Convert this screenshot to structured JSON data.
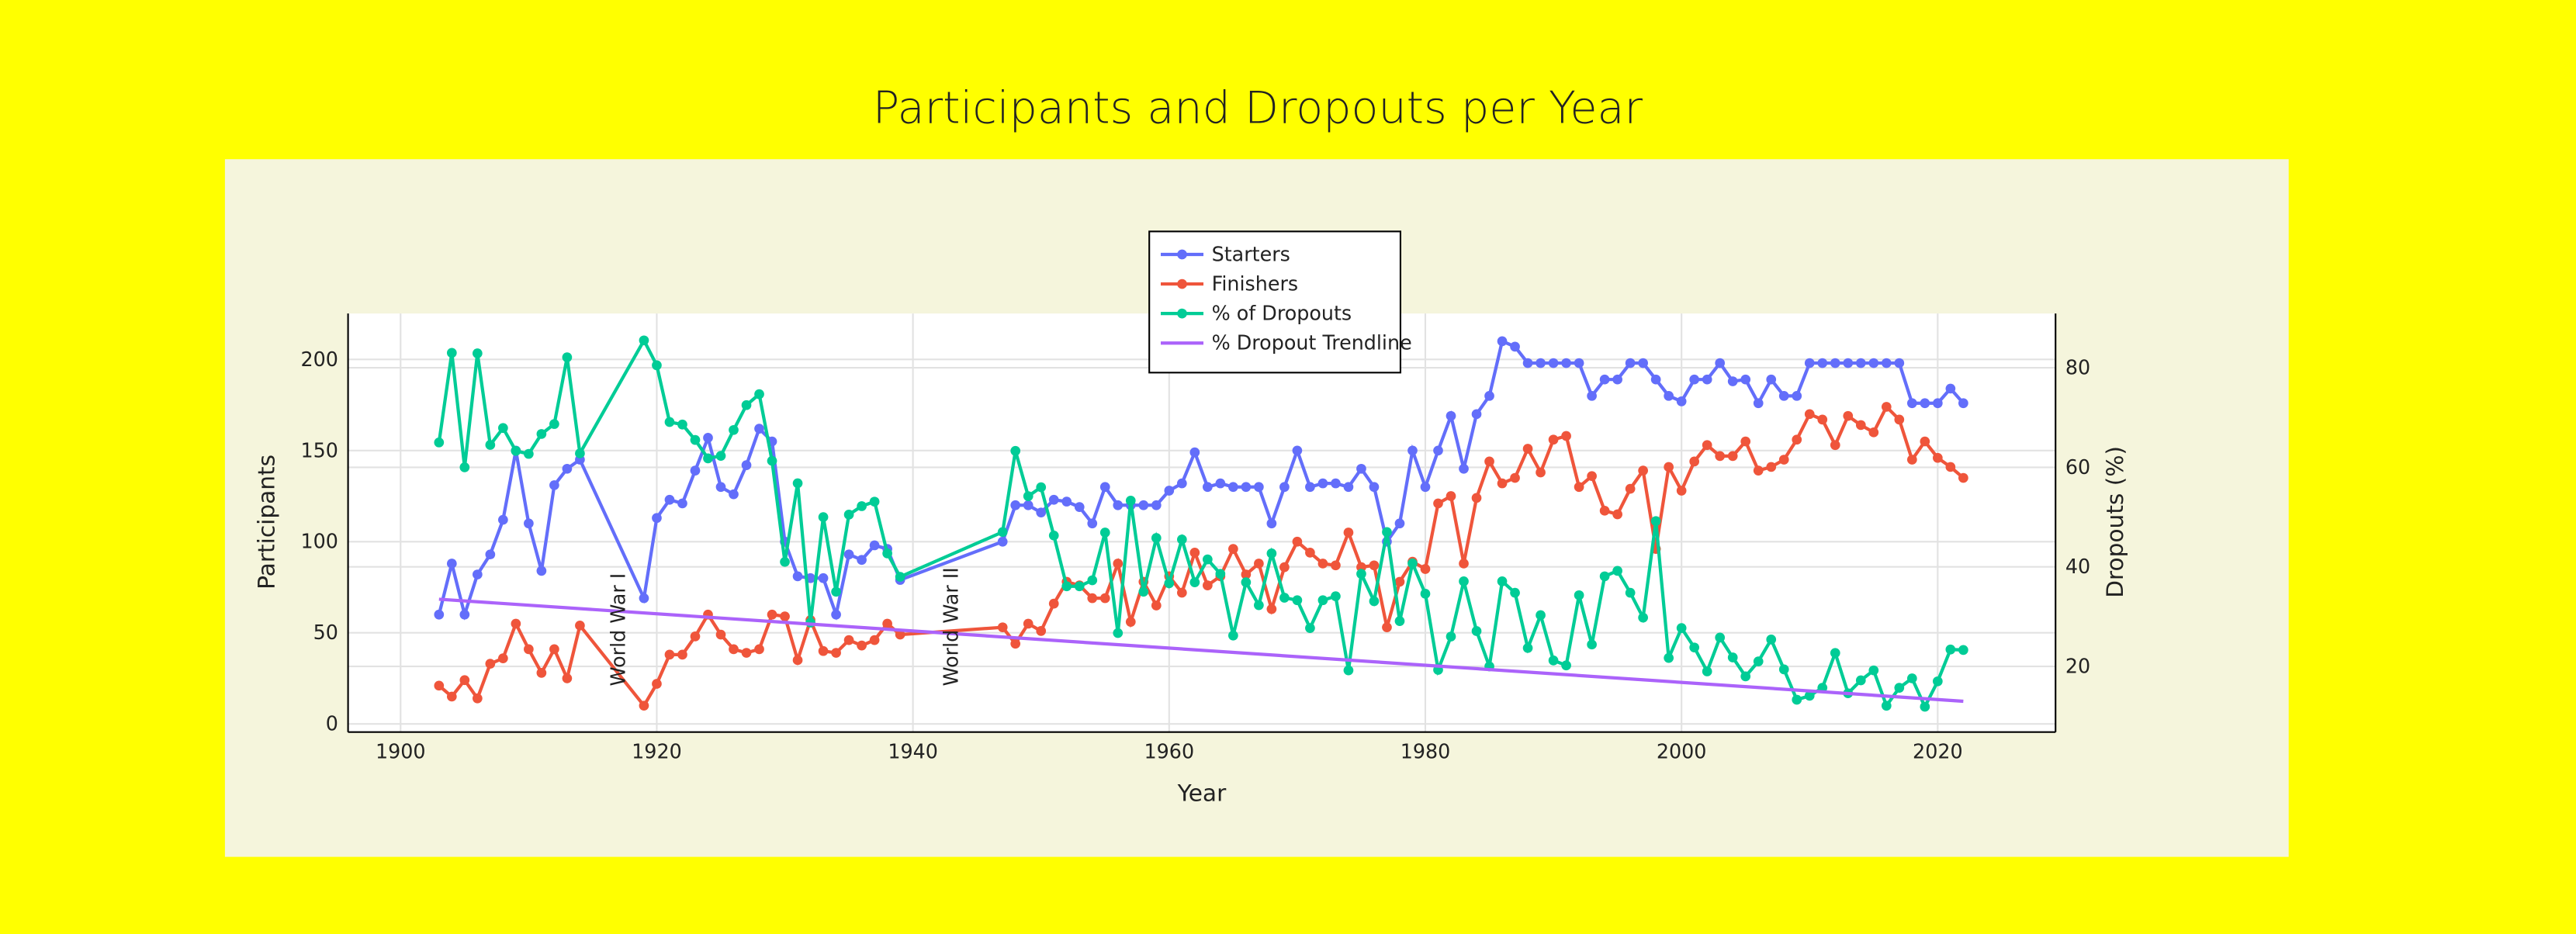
{
  "chart_data": {
    "type": "line",
    "title": "Participants and Dropouts per Year",
    "x_label": "Year",
    "y_label": "Participants",
    "y2_label": "Dropouts (%)",
    "x": [
      1903,
      1904,
      1905,
      1906,
      1907,
      1908,
      1909,
      1910,
      1911,
      1912,
      1913,
      1914,
      1919,
      1920,
      1921,
      1922,
      1923,
      1924,
      1925,
      1926,
      1927,
      1928,
      1929,
      1930,
      1931,
      1932,
      1933,
      1934,
      1935,
      1936,
      1937,
      1938,
      1939,
      1947,
      1948,
      1949,
      1950,
      1951,
      1952,
      1953,
      1954,
      1955,
      1956,
      1957,
      1958,
      1959,
      1960,
      1961,
      1962,
      1963,
      1964,
      1965,
      1966,
      1967,
      1968,
      1969,
      1970,
      1971,
      1972,
      1973,
      1974,
      1975,
      1976,
      1977,
      1978,
      1979,
      1980,
      1981,
      1982,
      1983,
      1984,
      1985,
      1986,
      1987,
      1988,
      1989,
      1990,
      1991,
      1992,
      1993,
      1994,
      1995,
      1996,
      1997,
      1998,
      1999,
      2000,
      2001,
      2002,
      2003,
      2004,
      2005,
      2006,
      2007,
      2008,
      2009,
      2010,
      2011,
      2012,
      2013,
      2014,
      2015,
      2016,
      2017,
      2018,
      2019,
      2020,
      2021,
      2022
    ],
    "series": [
      {
        "name": "Starters",
        "color": "#636efa",
        "axis": "y",
        "values": [
          60,
          88,
          60,
          82,
          93,
          112,
          150,
          110,
          84,
          131,
          140,
          145,
          69,
          113,
          123,
          121,
          139,
          157,
          130,
          126,
          142,
          162,
          155,
          100,
          81,
          80,
          80,
          60,
          93,
          90,
          98,
          96,
          79,
          100,
          120,
          120,
          116,
          123,
          122,
          119,
          110,
          130,
          120,
          120,
          120,
          120,
          128,
          132,
          149,
          130,
          132,
          130,
          130,
          130,
          110,
          130,
          150,
          130,
          132,
          132,
          130,
          140,
          130,
          100,
          110,
          150,
          130,
          150,
          169,
          140,
          170,
          180,
          210,
          207,
          198,
          198,
          198,
          198,
          198,
          180,
          189,
          189,
          198,
          198,
          189,
          180,
          177,
          189,
          189,
          198,
          188,
          189,
          176,
          189,
          180,
          180,
          198,
          198,
          198,
          198,
          198,
          198,
          198,
          198,
          176,
          176,
          176,
          184,
          176
        ]
      },
      {
        "name": "Finishers",
        "color": "#ef553b",
        "axis": "y",
        "values": [
          21,
          15,
          24,
          14,
          33,
          36,
          55,
          41,
          28,
          41,
          25,
          54,
          10,
          22,
          38,
          38,
          48,
          60,
          49,
          41,
          39,
          41,
          60,
          59,
          35,
          57,
          40,
          39,
          46,
          43,
          46,
          55,
          49,
          53,
          44,
          55,
          51,
          66,
          78,
          76,
          69,
          69,
          88,
          56,
          78,
          65,
          81,
          72,
          94,
          76,
          81,
          96,
          82,
          88,
          63,
          86,
          100,
          94,
          88,
          87,
          105,
          86,
          87,
          53,
          78,
          89,
          85,
          121,
          125,
          88,
          124,
          144,
          132,
          135,
          151,
          138,
          156,
          158,
          130,
          136,
          117,
          115,
          129,
          139,
          96,
          141,
          128,
          144,
          153,
          147,
          147,
          155,
          139,
          141,
          145,
          156,
          170,
          167,
          153,
          169,
          164,
          160,
          174,
          167,
          145,
          155,
          146,
          141,
          135
        ]
      },
      {
        "name": "% of Dropouts",
        "color": "#00cc96",
        "axis": "y2",
        "values": [
          65.0,
          83.0,
          60.0,
          82.9,
          64.5,
          67.9,
          63.3,
          62.7,
          66.7,
          68.7,
          82.1,
          62.8,
          85.5,
          80.5,
          69.1,
          68.6,
          65.5,
          61.8,
          62.3,
          67.5,
          72.5,
          74.7,
          61.3,
          41.0,
          56.8,
          28.8,
          50.0,
          35.0,
          50.5,
          52.2,
          53.1,
          42.7,
          38.0,
          47.0,
          63.3,
          54.2,
          56.0,
          46.3,
          36.1,
          36.1,
          37.3,
          46.9,
          26.7,
          53.3,
          35.0,
          45.8,
          36.7,
          45.5,
          36.9,
          41.5,
          38.6,
          26.2,
          36.9,
          32.3,
          42.7,
          33.8,
          33.3,
          27.7,
          33.3,
          34.1,
          19.2,
          38.6,
          33.1,
          47.0,
          29.1,
          40.7,
          34.6,
          19.3,
          26.0,
          37.1,
          27.1,
          20.0,
          37.1,
          34.8,
          23.7,
          30.3,
          21.2,
          20.2,
          34.3,
          24.4,
          38.1,
          39.2,
          34.8,
          29.8,
          49.2,
          21.7,
          27.7,
          23.8,
          19.0,
          25.8,
          21.8,
          18.0,
          21.0,
          25.4,
          19.4,
          13.3,
          14.1,
          15.7,
          22.7,
          14.6,
          17.2,
          19.2,
          12.1,
          15.7,
          17.6,
          11.9,
          17.0,
          23.4,
          23.3
        ]
      },
      {
        "name": "% Dropout Trendline",
        "color": "#ab63fa",
        "axis": "y2",
        "x": [
          1903,
          2022
        ],
        "values": [
          33.5,
          13.0
        ]
      }
    ],
    "annotations": [
      {
        "text": "World War I",
        "x": 1917
      },
      {
        "text": "World War II",
        "x": 1943
      }
    ],
    "xlim": [
      1895.9,
      2029.2
    ],
    "xticks": [
      1900,
      1920,
      1940,
      1960,
      1980,
      2000,
      2020
    ],
    "ylim": [
      -4.5,
      225.2
    ],
    "yticks": [
      0,
      50,
      100,
      150,
      200
    ],
    "y2lim": [
      6.8,
      90.9
    ],
    "y2ticks": [
      20,
      40,
      60,
      80
    ],
    "grid": true,
    "legend": "top"
  }
}
